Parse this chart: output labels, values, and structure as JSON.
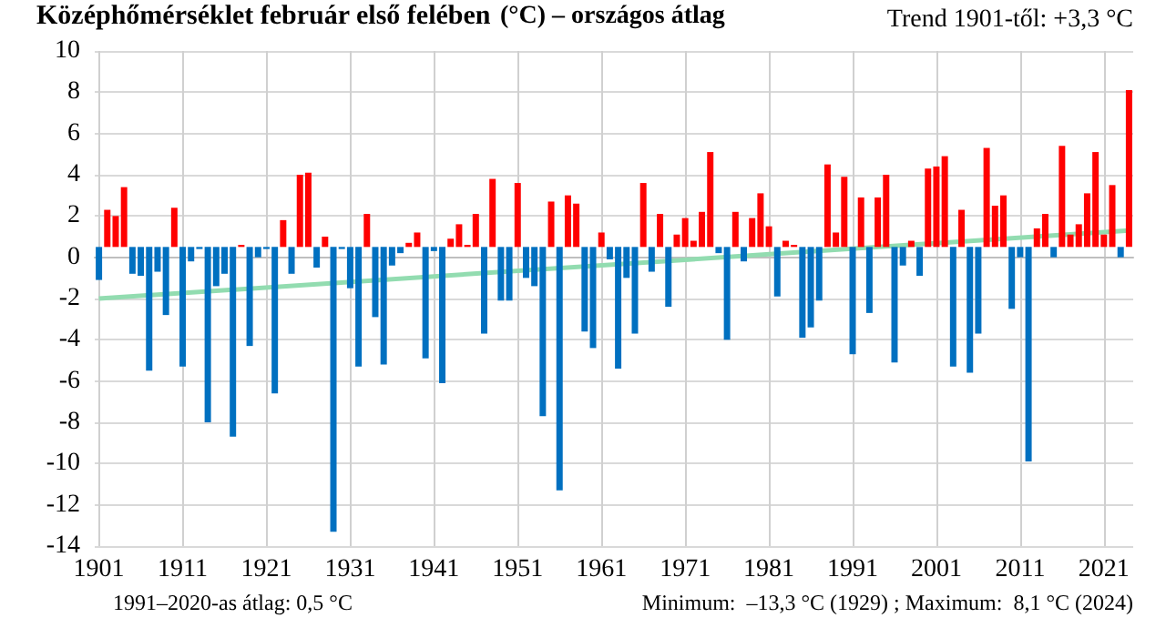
{
  "chart_data": {
    "type": "bar",
    "title": "Középhőmérséklet február első felében",
    "subtitle": "(°C) – országos átlag",
    "annotations": [
      "Trend 1901-től: +3,3 °C",
      "1991–2020-as átlag: 0,5 °C",
      "Minimum:  –13,3 °C (1929) ; Maximum:  8,1 °C (2024)"
    ],
    "x": [
      1901,
      1902,
      1903,
      1904,
      1905,
      1906,
      1907,
      1908,
      1909,
      1910,
      1911,
      1912,
      1913,
      1914,
      1915,
      1916,
      1917,
      1918,
      1919,
      1920,
      1921,
      1922,
      1923,
      1924,
      1925,
      1926,
      1927,
      1928,
      1929,
      1930,
      1931,
      1932,
      1933,
      1934,
      1935,
      1936,
      1937,
      1938,
      1939,
      1940,
      1941,
      1942,
      1943,
      1944,
      1945,
      1946,
      1947,
      1948,
      1949,
      1950,
      1951,
      1952,
      1953,
      1954,
      1955,
      1956,
      1957,
      1958,
      1959,
      1960,
      1961,
      1962,
      1963,
      1964,
      1965,
      1966,
      1967,
      1968,
      1969,
      1970,
      1971,
      1972,
      1973,
      1974,
      1975,
      1976,
      1977,
      1978,
      1979,
      1980,
      1981,
      1982,
      1983,
      1984,
      1985,
      1986,
      1987,
      1988,
      1989,
      1990,
      1991,
      1992,
      1993,
      1994,
      1995,
      1996,
      1997,
      1998,
      1999,
      2000,
      2001,
      2002,
      2003,
      2004,
      2005,
      2006,
      2007,
      2008,
      2009,
      2010,
      2011,
      2012,
      2013,
      2014,
      2015,
      2016,
      2017,
      2018,
      2019,
      2020,
      2021,
      2022,
      2023,
      2024
    ],
    "series": [
      {
        "values": [
          -1.6,
          1.8,
          1.5,
          2.9,
          -1.3,
          -1.4,
          -6.0,
          -1.2,
          -3.3,
          1.9,
          -5.8,
          -0.7,
          -0.1,
          -8.5,
          -1.9,
          -1.3,
          -9.2,
          0.1,
          -4.8,
          -0.5,
          -0.1,
          -7.1,
          1.3,
          -1.3,
          3.5,
          3.6,
          -1.0,
          0.5,
          -13.8,
          -0.1,
          -2.0,
          -5.8,
          1.6,
          -3.4,
          -5.7,
          -0.9,
          -0.3,
          0.2,
          0.7,
          -5.4,
          -0.2,
          -6.6,
          0.4,
          1.1,
          0.1,
          1.6,
          -4.2,
          3.3,
          -2.6,
          -2.6,
          3.1,
          -1.5,
          -1.9,
          -8.2,
          2.2,
          -11.8,
          2.5,
          2.1,
          -4.1,
          -4.9,
          0.7,
          -0.6,
          -5.9,
          -1.5,
          -4.2,
          3.1,
          -1.2,
          1.6,
          -2.9,
          0.6,
          1.4,
          0.3,
          1.7,
          4.6,
          -0.3,
          -4.5,
          1.7,
          -0.7,
          1.4,
          2.6,
          1.0,
          -2.4,
          0.3,
          0.1,
          -4.4,
          -3.9,
          -2.6,
          4.0,
          0.7,
          3.4,
          -5.2,
          2.4,
          -3.2,
          2.4,
          3.5,
          -5.6,
          -0.9,
          0.3,
          -1.4,
          3.8,
          3.9,
          4.4,
          -5.8,
          1.8,
          -6.1,
          -4.2,
          4.8,
          2.0,
          2.5,
          -3.0,
          -0.5,
          -10.4,
          0.9,
          1.6,
          -0.5,
          4.9,
          0.6,
          1.1,
          2.6,
          4.6,
          0.6,
          3.0,
          -0.5,
          7.6
        ],
        "base": [
          0.5,
          0.5,
          0.5,
          0.5,
          0.5,
          0.5,
          0.5,
          0.5,
          0.5,
          0.5,
          0.5,
          0.5,
          0.5,
          0.5,
          0.5,
          0.5,
          0.5,
          0.5,
          0.5,
          0.5,
          0.5,
          0.5,
          0.5,
          0.5,
          0.5,
          0.5,
          0.5,
          0.5,
          0.5,
          0.5,
          0.5,
          0.5,
          0.5,
          0.5,
          0.5,
          0.5,
          0.5,
          0.5,
          0.5,
          0.5,
          0.5,
          0.5,
          0.5,
          0.5,
          0.5,
          0.5,
          0.5,
          0.5,
          0.5,
          0.5,
          0.5,
          0.5,
          0.5,
          0.5,
          0.5,
          0.5,
          0.5,
          0.5,
          0.5,
          0.5,
          0.5,
          0.5,
          0.5,
          0.5,
          0.5,
          0.5,
          0.5,
          0.5,
          0.5,
          0.5,
          0.5,
          0.5,
          0.5,
          0.5,
          0.5,
          0.5,
          0.5,
          0.5,
          0.5,
          0.5,
          0.5,
          0.5,
          0.5,
          0.5,
          0.5,
          0.5,
          0.5,
          0.5,
          0.5,
          0.5,
          0.5,
          0.5,
          0.5,
          0.5,
          0.5,
          0.5,
          0.5,
          0.5,
          0.5,
          0.5,
          0.5,
          0.5,
          0.5,
          0.5,
          0.5,
          0.5,
          0.5,
          0.5,
          0.5,
          0.5,
          0.5,
          0.5,
          0.5,
          0.5,
          0.5,
          0.5,
          0.5,
          0.5,
          0.5,
          0.5,
          0.5,
          0.5,
          0.5,
          0.5
        ],
        "colors": [
          "#0070c0",
          "#ff0000",
          "#ff0000",
          "#ff0000",
          "#0070c0",
          "#0070c0",
          "#0070c0",
          "#0070c0",
          "#0070c0",
          "#ff0000",
          "#0070c0",
          "#0070c0",
          "#0070c0",
          "#0070c0",
          "#0070c0",
          "#0070c0",
          "#0070c0",
          "#ff0000",
          "#0070c0",
          "#0070c0",
          "#0070c0",
          "#0070c0",
          "#ff0000",
          "#0070c0",
          "#ff0000",
          "#ff0000",
          "#0070c0",
          "#ff0000",
          "#0070c0",
          "#0070c0",
          "#0070c0",
          "#0070c0",
          "#ff0000",
          "#0070c0",
          "#0070c0",
          "#0070c0",
          "#0070c0",
          "#ff0000",
          "#ff0000",
          "#0070c0",
          "#0070c0",
          "#0070c0",
          "#ff0000",
          "#ff0000",
          "#ff0000",
          "#ff0000",
          "#0070c0",
          "#ff0000",
          "#0070c0",
          "#0070c0",
          "#ff0000",
          "#0070c0",
          "#0070c0",
          "#0070c0",
          "#ff0000",
          "#0070c0",
          "#ff0000",
          "#ff0000",
          "#0070c0",
          "#0070c0",
          "#ff0000",
          "#0070c0",
          "#0070c0",
          "#0070c0",
          "#0070c0",
          "#ff0000",
          "#0070c0",
          "#ff0000",
          "#0070c0",
          "#ff0000",
          "#ff0000",
          "#ff0000",
          "#ff0000",
          "#ff0000",
          "#0070c0",
          "#0070c0",
          "#ff0000",
          "#0070c0",
          "#ff0000",
          "#ff0000",
          "#ff0000",
          "#0070c0",
          "#ff0000",
          "#ff0000",
          "#0070c0",
          "#0070c0",
          "#0070c0",
          "#ff0000",
          "#ff0000",
          "#ff0000",
          "#0070c0",
          "#ff0000",
          "#0070c0",
          "#ff0000",
          "#ff0000",
          "#0070c0",
          "#0070c0",
          "#ff0000",
          "#0070c0",
          "#ff0000",
          "#ff0000",
          "#ff0000",
          "#0070c0",
          "#ff0000",
          "#0070c0",
          "#0070c0",
          "#ff0000",
          "#ff0000",
          "#ff0000",
          "#0070c0",
          "#0070c0",
          "#0070c0",
          "#ff0000",
          "#ff0000",
          "#0070c0",
          "#ff0000",
          "#ff0000",
          "#ff0000",
          "#ff0000",
          "#ff0000",
          "#ff0000",
          "#ff0000",
          "#0070c0",
          "#ff0000"
        ]
      },
      {
        "type": "line",
        "x": [
          1901,
          2024
        ],
        "values": [
          -2.0,
          1.3
        ],
        "color": "#92dcb0"
      }
    ],
    "xlim": [
      1900.5,
      2024.5
    ],
    "xticks": [
      1901,
      1911,
      1921,
      1931,
      1941,
      1951,
      1961,
      1971,
      1981,
      1991,
      2001,
      2011,
      2021
    ],
    "ylim": [
      -14,
      10
    ],
    "yticks": [
      -14,
      -12,
      -10,
      -8,
      -6,
      -4,
      -2,
      0,
      2,
      4,
      6,
      8,
      10
    ],
    "grid": true,
    "marker": "none",
    "line_style": "solid"
  }
}
